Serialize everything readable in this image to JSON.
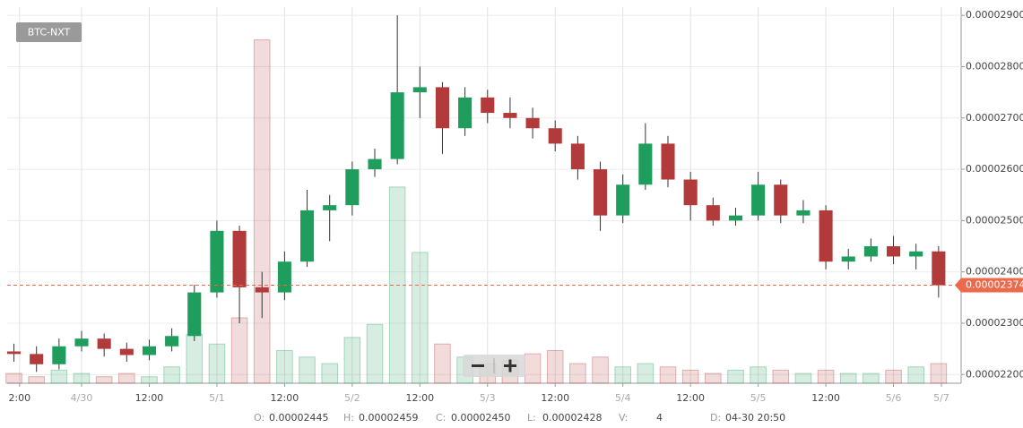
{
  "chart_data": {
    "type": "candlestick",
    "pair": "BTC-NXT",
    "x": [
      -12,
      -8,
      -4,
      0,
      4,
      8,
      12,
      16,
      20,
      24,
      28,
      32,
      36,
      40,
      44,
      48,
      52,
      56,
      60,
      64,
      68,
      72,
      76,
      80,
      84,
      88,
      92,
      96,
      100,
      104,
      108,
      112,
      116,
      120,
      124,
      128,
      132,
      136,
      140,
      144,
      148,
      152
    ],
    "open": [
      2.245e-05,
      2.24e-05,
      2.22e-05,
      2.255e-05,
      2.27e-05,
      2.25e-05,
      2.238e-05,
      2.255e-05,
      2.275e-05,
      2.36e-05,
      2.48e-05,
      2.37e-05,
      2.36e-05,
      2.42e-05,
      2.52e-05,
      2.53e-05,
      2.6e-05,
      2.62e-05,
      2.75e-05,
      2.76e-05,
      2.68e-05,
      2.74e-05,
      2.71e-05,
      2.7e-05,
      2.68e-05,
      2.65e-05,
      2.6e-05,
      2.51e-05,
      2.57e-05,
      2.65e-05,
      2.58e-05,
      2.53e-05,
      2.5e-05,
      2.51e-05,
      2.57e-05,
      2.51e-05,
      2.52e-05,
      2.42e-05,
      2.43e-05,
      2.45e-05,
      2.43e-05,
      2.44e-05
    ],
    "high": [
      2.26e-05,
      2.255e-05,
      2.27e-05,
      2.285e-05,
      2.28e-05,
      2.262e-05,
      2.268e-05,
      2.29e-05,
      2.375e-05,
      2.5e-05,
      2.49e-05,
      2.4e-05,
      2.44e-05,
      2.56e-05,
      2.55e-05,
      2.615e-05,
      2.64e-05,
      2.9e-05,
      2.8e-05,
      2.77e-05,
      2.76e-05,
      2.755e-05,
      2.74e-05,
      2.72e-05,
      2.695e-05,
      2.665e-05,
      2.615e-05,
      2.59e-05,
      2.69e-05,
      2.665e-05,
      2.595e-05,
      2.545e-05,
      2.525e-05,
      2.595e-05,
      2.58e-05,
      2.54e-05,
      2.53e-05,
      2.445e-05,
      2.465e-05,
      2.47e-05,
      2.455e-05,
      2.45e-05
    ],
    "low": [
      2.225e-05,
      2.205e-05,
      2.21e-05,
      2.245e-05,
      2.235e-05,
      2.225e-05,
      2.228e-05,
      2.245e-05,
      2.265e-05,
      2.35e-05,
      2.3e-05,
      2.31e-05,
      2.345e-05,
      2.41e-05,
      2.46e-05,
      2.51e-05,
      2.585e-05,
      2.61e-05,
      2.7e-05,
      2.63e-05,
      2.665e-05,
      2.69e-05,
      2.68e-05,
      2.66e-05,
      2.635e-05,
      2.58e-05,
      2.48e-05,
      2.495e-05,
      2.56e-05,
      2.565e-05,
      2.5e-05,
      2.49e-05,
      2.49e-05,
      2.5e-05,
      2.495e-05,
      2.495e-05,
      2.405e-05,
      2.405e-05,
      2.42e-05,
      2.415e-05,
      2.405e-05,
      2.35e-05
    ],
    "close": [
      2.24e-05,
      2.22e-05,
      2.255e-05,
      2.27e-05,
      2.25e-05,
      2.238e-05,
      2.255e-05,
      2.275e-05,
      2.36e-05,
      2.48e-05,
      2.37e-05,
      2.36e-05,
      2.42e-05,
      2.52e-05,
      2.53e-05,
      2.6e-05,
      2.62e-05,
      2.75e-05,
      2.76e-05,
      2.68e-05,
      2.74e-05,
      2.71e-05,
      2.7e-05,
      2.68e-05,
      2.65e-05,
      2.6e-05,
      2.51e-05,
      2.57e-05,
      2.65e-05,
      2.58e-05,
      2.53e-05,
      2.5e-05,
      2.51e-05,
      2.57e-05,
      2.51e-05,
      2.52e-05,
      2.42e-05,
      2.43e-05,
      2.45e-05,
      2.43e-05,
      2.44e-05,
      2.374e-05
    ],
    "volume": [
      3,
      2,
      4,
      3,
      2,
      3,
      2,
      5,
      15,
      12,
      20,
      105,
      10,
      8,
      6,
      14,
      18,
      60,
      40,
      12,
      8,
      6,
      7,
      9,
      10,
      6,
      8,
      5,
      6,
      5,
      4,
      3,
      4,
      5,
      4,
      3,
      4,
      3,
      3,
      4,
      5,
      6
    ],
    "volume_lim": [
      0,
      115
    ],
    "up_color": "#1f9d5c",
    "down_color": "#b23a3a",
    "last_price": 2.374e-05,
    "last_price_color": "#ec6a4c",
    "xlim": [
      -13.2,
      156
    ],
    "xticks": [
      {
        "value": -11,
        "label": "2:00"
      },
      {
        "value": 0,
        "label": "4/30"
      },
      {
        "value": 12,
        "label": "12:00"
      },
      {
        "value": 24,
        "label": "5/1"
      },
      {
        "value": 36,
        "label": "12:00"
      },
      {
        "value": 48,
        "label": "5/2"
      },
      {
        "value": 60,
        "label": "12:00"
      },
      {
        "value": 72,
        "label": "5/3"
      },
      {
        "value": 84,
        "label": "12:00"
      },
      {
        "value": 96,
        "label": "5/4"
      },
      {
        "value": 108,
        "label": "12:00"
      },
      {
        "value": 120,
        "label": "5/5"
      },
      {
        "value": 132,
        "label": "12:00"
      },
      {
        "value": 144,
        "label": "5/6"
      },
      {
        "value": 152.5,
        "label": "5/7"
      }
    ],
    "ylim": [
      2.183e-05,
      2.916e-05
    ],
    "yticks": [
      {
        "value": 2.2e-05,
        "label": "0.00002200"
      },
      {
        "value": 2.3e-05,
        "label": "0.00002300"
      },
      {
        "value": 2.4e-05,
        "label": "0.00002400"
      },
      {
        "value": 2.5e-05,
        "label": "0.00002500"
      },
      {
        "value": 2.6e-05,
        "label": "0.00002600"
      },
      {
        "value": 2.7e-05,
        "label": "0.00002700"
      },
      {
        "value": 2.8e-05,
        "label": "0.00002800"
      },
      {
        "value": 2.9e-05,
        "label": "0.00002900"
      }
    ],
    "grid": true,
    "readout": [
      {
        "key": "O:",
        "value": "0.00002445"
      },
      {
        "key": "H:",
        "value": "0.00002459"
      },
      {
        "key": "C:",
        "value": "0.00002450"
      },
      {
        "key": "L:",
        "value": "0.00002428"
      },
      {
        "key": "V:",
        "value": "4"
      },
      {
        "key": "D:",
        "value": "04-30 20:50"
      }
    ]
  }
}
